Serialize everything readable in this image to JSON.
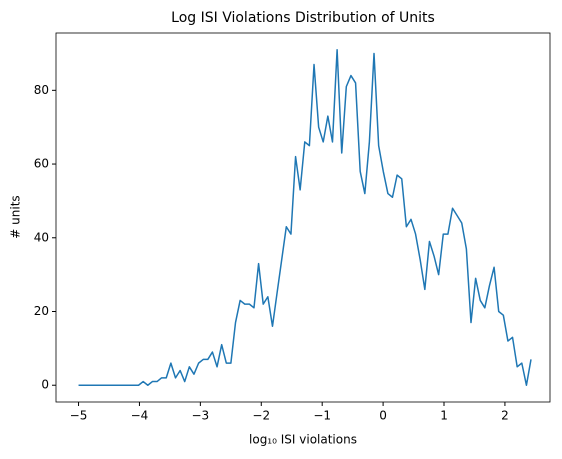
{
  "chart_data": {
    "type": "line",
    "title": "Log ISI Violations Distribution of Units",
    "xlabel": "log₁₀ ISI violations",
    "ylabel": "# units",
    "x": [
      -5,
      -4.924,
      -4.848,
      -4.773,
      -4.697,
      -4.621,
      -4.545,
      -4.469,
      -4.394,
      -4.318,
      -4.242,
      -4.166,
      -4.09,
      -4.015,
      -3.939,
      -3.863,
      -3.787,
      -3.711,
      -3.636,
      -3.56,
      -3.484,
      -3.408,
      -3.332,
      -3.257,
      -3.181,
      -3.105,
      -3.029,
      -2.953,
      -2.878,
      -2.802,
      -2.726,
      -2.65,
      -2.574,
      -2.499,
      -2.423,
      -2.347,
      -2.271,
      -2.195,
      -2.12,
      -2.044,
      -1.968,
      -1.892,
      -1.816,
      -1.741,
      -1.665,
      -1.589,
      -1.513,
      -1.437,
      -1.362,
      -1.286,
      -1.21,
      -1.134,
      -1.058,
      -0.983,
      -0.907,
      -0.831,
      -0.755,
      -0.679,
      -0.604,
      -0.528,
      -0.452,
      -0.376,
      -0.3,
      -0.225,
      -0.149,
      -0.073,
      0.003,
      0.079,
      0.154,
      0.23,
      0.306,
      0.382,
      0.458,
      0.533,
      0.609,
      0.685,
      0.761,
      0.837,
      0.912,
      0.988,
      1.064,
      1.14,
      1.216,
      1.291,
      1.367,
      1.443,
      1.519,
      1.595,
      1.67,
      1.746,
      1.822,
      1.898,
      1.974,
      2.049,
      2.125,
      2.201,
      2.277,
      2.353,
      2.428
    ],
    "series": [
      {
        "color": "#1f77b4",
        "values": [
          0,
          0,
          0,
          0,
          0,
          0,
          0,
          0,
          0,
          0,
          0,
          0,
          0,
          0,
          1,
          0,
          1,
          1,
          2,
          2,
          6,
          2,
          4,
          1,
          5,
          3,
          6,
          7,
          7,
          9,
          5,
          11,
          6,
          6,
          17,
          23,
          22,
          22,
          21,
          33,
          22,
          24,
          16,
          25,
          34,
          43,
          41,
          62,
          53,
          66,
          65,
          87,
          70,
          66,
          73,
          66,
          91,
          63,
          81,
          84,
          82,
          58,
          52,
          66,
          90,
          65,
          58,
          52,
          51,
          57,
          56,
          43,
          45,
          41,
          34,
          26,
          39,
          35,
          30,
          41,
          41,
          48,
          46,
          44,
          37,
          17,
          29,
          23,
          21,
          27,
          32,
          20,
          19,
          12,
          13,
          5,
          6,
          0,
          7
        ]
      }
    ],
    "xlim": [
      -5.37,
      2.74
    ],
    "ylim": [
      -4.55,
      95.55
    ],
    "xticks": [
      {
        "value": -5,
        "label": "−5"
      },
      {
        "value": -4,
        "label": "−4"
      },
      {
        "value": -3,
        "label": "−3"
      },
      {
        "value": -2,
        "label": "−2"
      },
      {
        "value": -1,
        "label": "−1"
      },
      0,
      1,
      2
    ],
    "yticks": [
      0,
      20,
      40,
      60,
      80
    ],
    "grid": false
  }
}
